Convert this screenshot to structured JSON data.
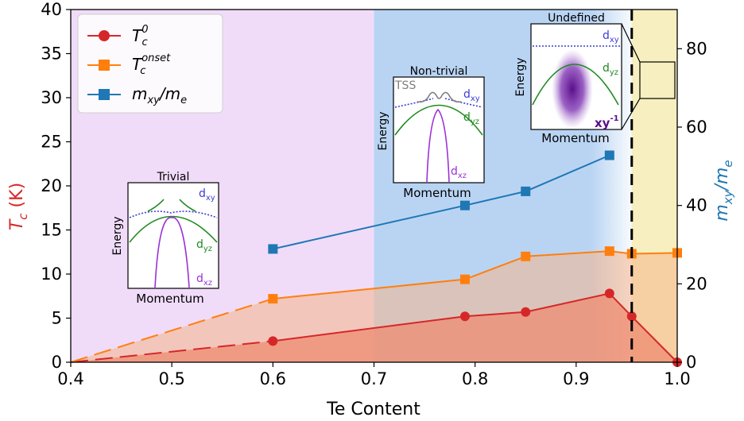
{
  "chart_data": {
    "type": "line",
    "xlabel": "Te Content",
    "ylabel_left": "T_c (K)",
    "ylabel_right": "m_xy/m_e",
    "xlim": [
      0.4,
      1.0
    ],
    "ylim_left": [
      0,
      40
    ],
    "ylim_right": [
      0,
      90
    ],
    "x_ticks": [
      "0.4",
      "0.5",
      "0.6",
      "0.7",
      "0.8",
      "0.9",
      "1.0"
    ],
    "x_tick_values": [
      0.4,
      0.5,
      0.6,
      0.7,
      0.8,
      0.9,
      1.0
    ],
    "y_ticks_left": [
      "0",
      "5",
      "10",
      "15",
      "20",
      "25",
      "30",
      "35",
      "40"
    ],
    "y_tick_values_left": [
      0,
      5,
      10,
      15,
      20,
      25,
      30,
      35,
      40
    ],
    "y_ticks_right": [
      "0",
      "20",
      "40",
      "60",
      "80"
    ],
    "y_tick_values_right": [
      0,
      20,
      40,
      60,
      80
    ],
    "grid": false,
    "legend_position": "top-left",
    "regions": [
      {
        "x_from": 0.4,
        "x_to": 0.7,
        "color": "#f0dcf9"
      },
      {
        "x_from": 0.7,
        "x_to": 0.955,
        "color": "#b9d4f3"
      },
      {
        "x_from": 0.955,
        "x_to": 1.0,
        "color": "#f7efbf"
      }
    ],
    "critical_line_x": 0.955,
    "series": [
      {
        "label_main": "T",
        "label_sup": "0",
        "label_sub": "c",
        "axis": "left",
        "color": "#d62728",
        "marker": "circle",
        "points": [
          [
            0.4,
            0.0
          ],
          [
            0.6,
            2.4
          ],
          [
            0.79,
            5.2
          ],
          [
            0.85,
            5.7
          ],
          [
            0.933,
            7.8
          ],
          [
            0.955,
            5.2
          ],
          [
            1.0,
            0.0
          ]
        ],
        "dashed_until": 0.6,
        "fill": "#ee8c72"
      },
      {
        "label_main": "T",
        "label_sup": "onset",
        "label_sub": "c",
        "axis": "left",
        "color": "#ff7f0e",
        "marker": "square",
        "points": [
          [
            0.4,
            0.0
          ],
          [
            0.6,
            7.2
          ],
          [
            0.79,
            9.4
          ],
          [
            0.85,
            12.0
          ],
          [
            0.933,
            12.6
          ],
          [
            0.955,
            12.3
          ],
          [
            1.0,
            12.4
          ]
        ],
        "dashed_until": 0.6,
        "fill": "#f5b58a"
      },
      {
        "label_main": "m",
        "label_sub": "xy",
        "label_suffix": "/m",
        "label_suffix_sub": "e",
        "axis": "right",
        "color": "#1f77b4",
        "marker": "square",
        "points": [
          [
            0.6,
            28.9
          ],
          [
            0.79,
            40.0
          ],
          [
            0.85,
            43.6
          ],
          [
            0.933,
            52.8
          ]
        ]
      }
    ]
  },
  "insets": {
    "trivial": {
      "title": "Trivial",
      "ylabel": "Energy",
      "xlabel": "Momentum",
      "band1": "d",
      "band1_sub": "xy",
      "band2": "d",
      "band2_sub": "yz",
      "band3": "d",
      "band3_sub": "xz"
    },
    "nontrivial": {
      "title": "Non-trivial",
      "ylabel": "Energy",
      "xlabel": "Momentum",
      "tss": "TSS",
      "band1": "d",
      "band1_sub": "xy",
      "band2": "d",
      "band2_sub": "yz",
      "band3": "d",
      "band3_sub": "xz"
    },
    "undefined": {
      "title": "Undefined",
      "ylabel": "Energy",
      "xlabel": "Momentum",
      "band1": "d",
      "band1_sub": "xy",
      "band2": "d",
      "band2_sub": "yz",
      "band3": "xy",
      "band3_sup": "-1"
    }
  },
  "colors": {
    "axis": "#000000",
    "tc_label": "#d62728",
    "mass_label": "#1f77b4",
    "dxy": "#3b3bd9",
    "dyz": "#1f8a1f",
    "dxz": "#9b30d9",
    "tss": "#7f7f7f",
    "incoherent": "#5a0e8a"
  }
}
